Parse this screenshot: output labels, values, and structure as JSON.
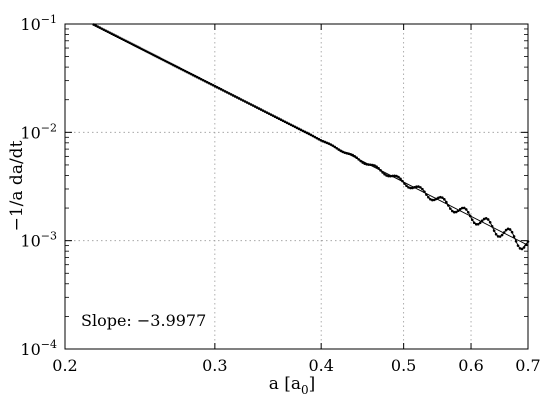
{
  "chart_data": {
    "type": "line",
    "title": "",
    "xlabel_main": "a [a",
    "xlabel_sub": "0",
    "xlabel_close": "]",
    "ylabel": "−1/a da/dt",
    "xscale": "log",
    "yscale": "log",
    "xlim": [
      0.2,
      0.7
    ],
    "ylim": [
      0.0001,
      0.1
    ],
    "grid": true,
    "x_ticks": [
      {
        "value": 0.2,
        "label": "0.2"
      },
      {
        "value": 0.3,
        "label": "0.3"
      },
      {
        "value": 0.4,
        "label": "0.4"
      },
      {
        "value": 0.5,
        "label": "0.5"
      },
      {
        "value": 0.6,
        "label": "0.6"
      },
      {
        "value": 0.7,
        "label": "0.7"
      }
    ],
    "y_ticks": [
      {
        "value": 0.0001,
        "base": "10",
        "exp": "−4"
      },
      {
        "value": 0.001,
        "base": "10",
        "exp": "−3"
      },
      {
        "value": 0.01,
        "base": "10",
        "exp": "−2"
      },
      {
        "value": 0.1,
        "base": "10",
        "exp": "−1"
      }
    ],
    "annotation": "Slope: −3.9977",
    "series": [
      {
        "style": "solid line with dots",
        "color": "#000000",
        "fit_line": {
          "x": [
            0.2155,
            0.7
          ],
          "y": [
            0.1,
            0.000907
          ]
        },
        "x_start": 0.215,
        "x_end": 0.7,
        "point_count": 220,
        "oscillation_onset_x": 0.38,
        "oscillation_max_amp_decades": 0.07,
        "oscillation_cycles_per_unit_log10_x": 38
      }
    ]
  }
}
